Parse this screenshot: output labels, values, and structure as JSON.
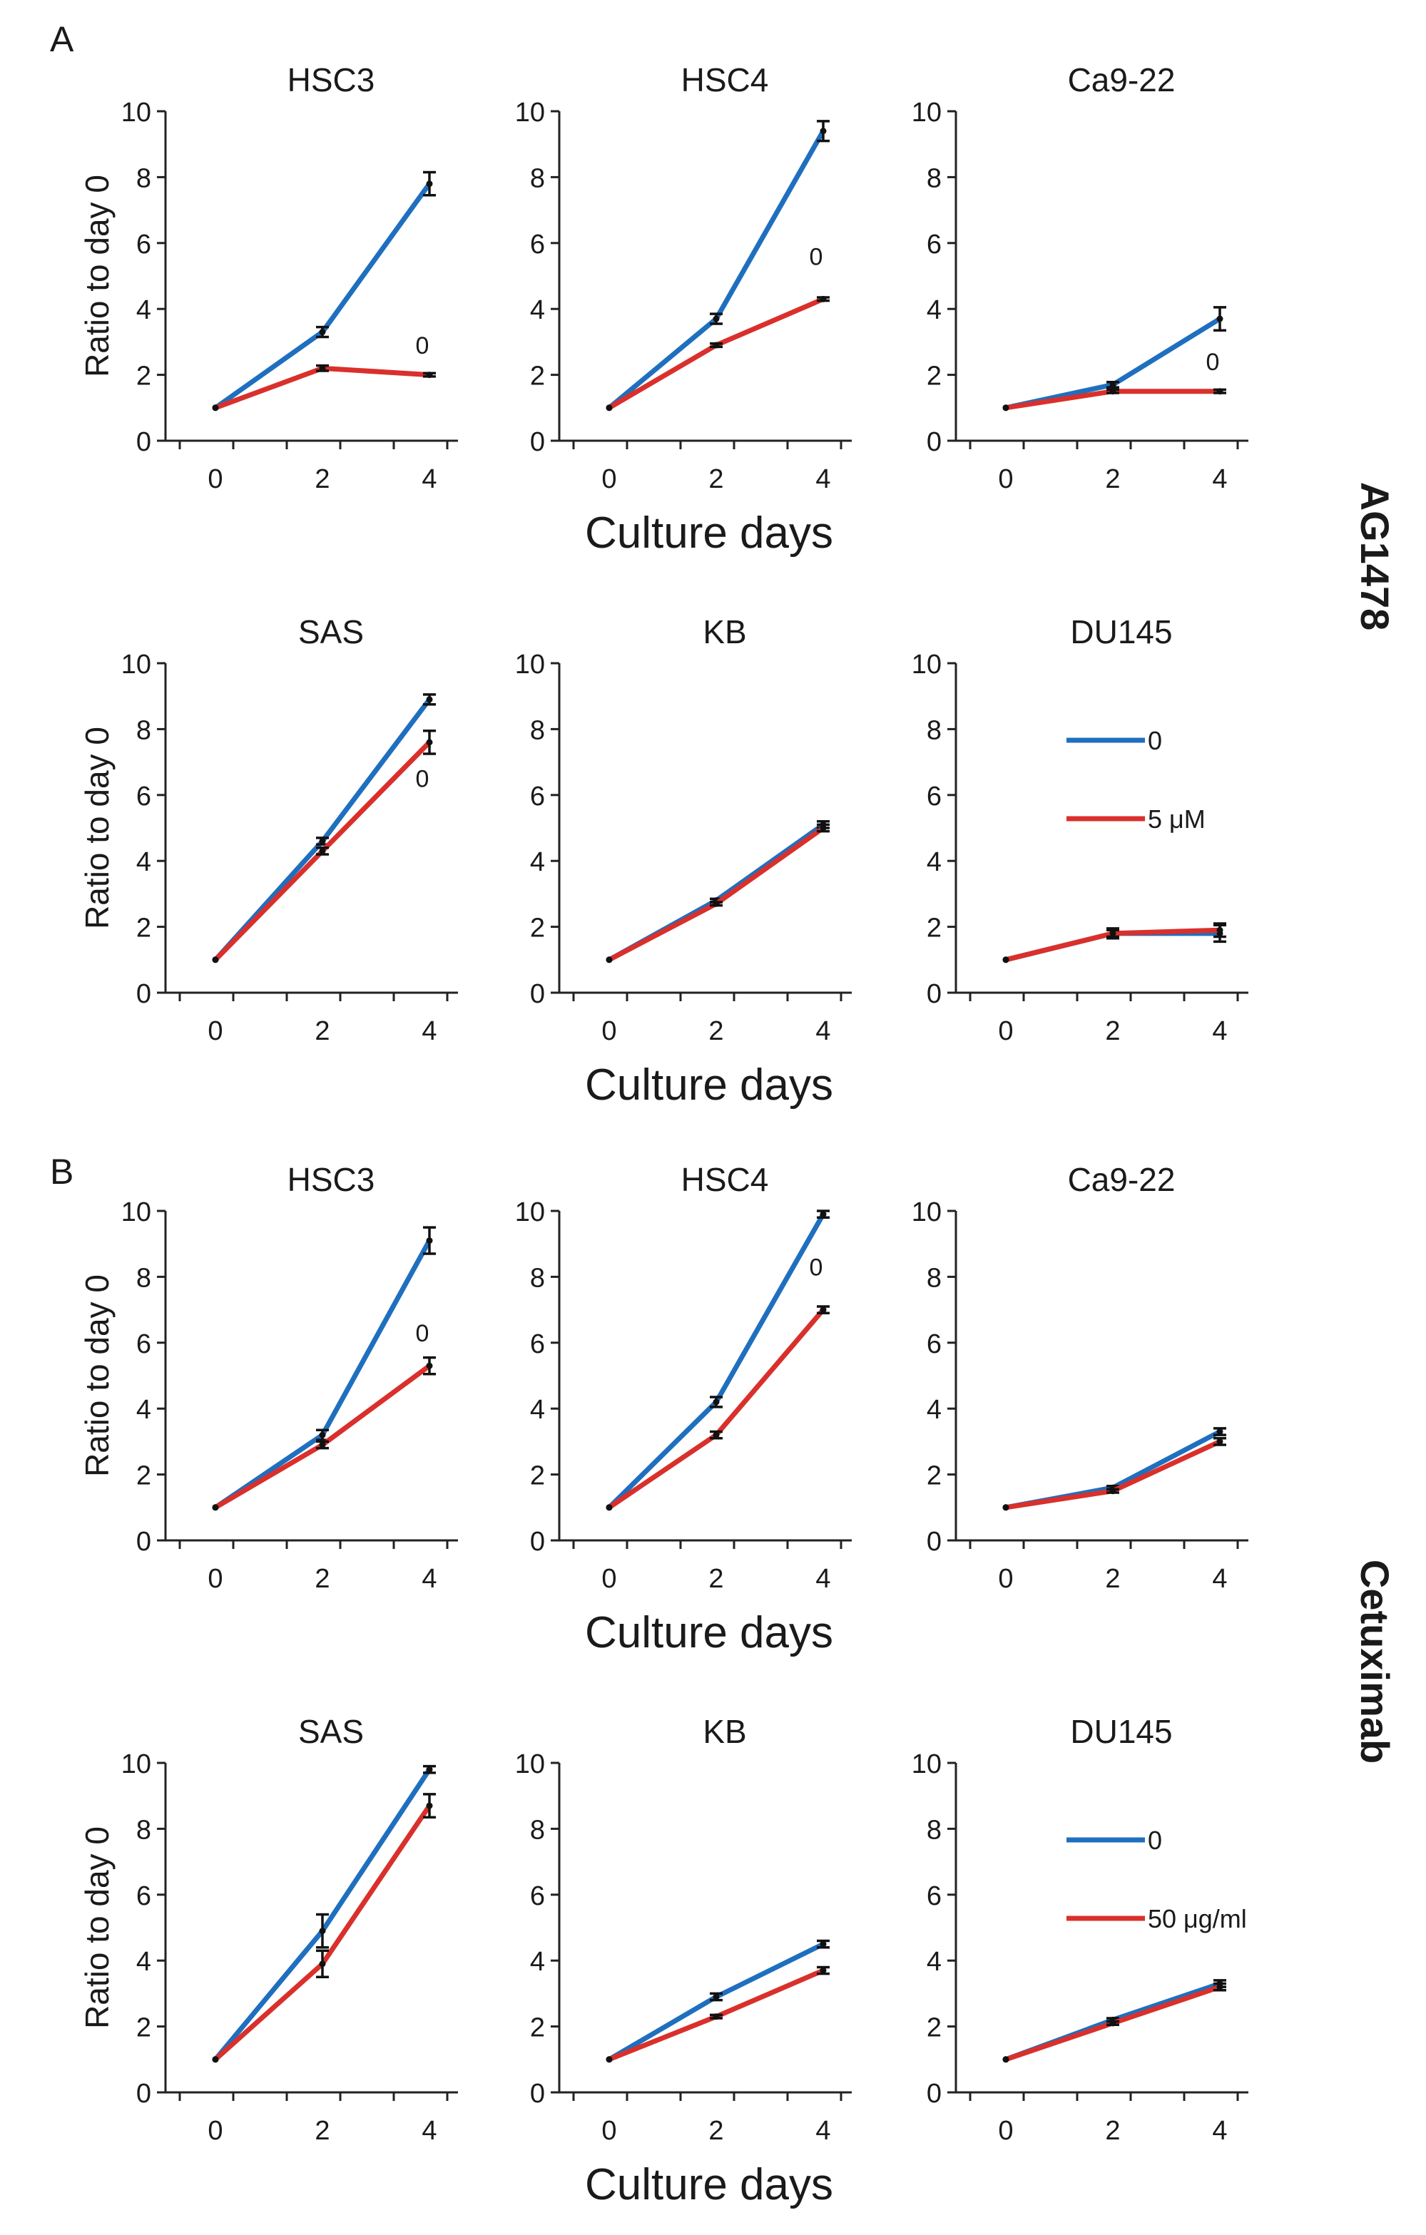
{
  "figure": {
    "panel_labels": [
      "A",
      "B"
    ],
    "treatment_labels": [
      "AG1478",
      "Cetuximab"
    ],
    "xlabel": "Culture days",
    "ylabel": "Ratio to day 0",
    "colors": {
      "control": "#1f6fbf",
      "treated": "#d9302c"
    },
    "significance_mark": "0"
  },
  "chart_data": [
    {
      "type": "line",
      "group": "AG1478",
      "title": "HSC3",
      "x": [
        0,
        2,
        4
      ],
      "ylim": [
        0,
        10
      ],
      "yticks": [
        0,
        2,
        4,
        6,
        8,
        10
      ],
      "xlabel": "",
      "ylabel": "Ratio to day 0",
      "series": [
        {
          "name": "0",
          "values": [
            1,
            3.3,
            7.8
          ],
          "err": [
            0,
            0.15,
            0.35
          ]
        },
        {
          "name": "5 μM",
          "values": [
            1,
            2.2,
            2.0
          ],
          "err": [
            0,
            0.08,
            0.05
          ]
        }
      ],
      "sig": 2.9
    },
    {
      "type": "line",
      "group": "AG1478",
      "title": "HSC4",
      "x": [
        0,
        2,
        4
      ],
      "ylim": [
        0,
        10
      ],
      "yticks": [
        0,
        2,
        4,
        6,
        8,
        10
      ],
      "xlabel": "Culture days",
      "ylabel": "",
      "series": [
        {
          "name": "0",
          "values": [
            1,
            3.7,
            9.4
          ],
          "err": [
            0,
            0.15,
            0.3
          ]
        },
        {
          "name": "5 μM",
          "values": [
            1,
            2.9,
            4.3
          ],
          "err": [
            0,
            0.05,
            0.05
          ]
        }
      ],
      "sig": 5.6
    },
    {
      "type": "line",
      "group": "AG1478",
      "title": "Ca9-22",
      "x": [
        0,
        2,
        4
      ],
      "ylim": [
        0,
        10
      ],
      "yticks": [
        0,
        2,
        4,
        6,
        8,
        10
      ],
      "xlabel": "",
      "ylabel": "",
      "series": [
        {
          "name": "0",
          "values": [
            1,
            1.7,
            3.7
          ],
          "err": [
            0,
            0.08,
            0.35
          ]
        },
        {
          "name": "5 μM",
          "values": [
            1,
            1.5,
            1.5
          ],
          "err": [
            0,
            0.05,
            0.05
          ]
        }
      ],
      "sig": 2.4
    },
    {
      "type": "line",
      "group": "AG1478",
      "title": "SAS",
      "x": [
        0,
        2,
        4
      ],
      "ylim": [
        0,
        10
      ],
      "yticks": [
        0,
        2,
        4,
        6,
        8,
        10
      ],
      "xlabel": "",
      "ylabel": "Ratio to day 0",
      "series": [
        {
          "name": "0",
          "values": [
            1,
            4.6,
            8.9
          ],
          "err": [
            0,
            0.1,
            0.15
          ]
        },
        {
          "name": "5 μM",
          "values": [
            1,
            4.3,
            7.6
          ],
          "err": [
            0,
            0.1,
            0.35
          ]
        }
      ],
      "sig": 6.5
    },
    {
      "type": "line",
      "group": "AG1478",
      "title": "KB",
      "x": [
        0,
        2,
        4
      ],
      "ylim": [
        0,
        10
      ],
      "yticks": [
        0,
        2,
        4,
        6,
        8,
        10
      ],
      "xlabel": "Culture days",
      "ylabel": "",
      "series": [
        {
          "name": "0",
          "values": [
            1,
            2.8,
            5.1
          ],
          "err": [
            0,
            0.05,
            0.1
          ]
        },
        {
          "name": "5 μM",
          "values": [
            1,
            2.7,
            5.0
          ],
          "err": [
            0,
            0.05,
            0.1
          ]
        }
      ],
      "sig": null
    },
    {
      "type": "line",
      "group": "AG1478",
      "title": "DU145",
      "x": [
        0,
        2,
        4
      ],
      "ylim": [
        0,
        10
      ],
      "yticks": [
        0,
        2,
        4,
        6,
        8,
        10
      ],
      "xlabel": "",
      "ylabel": "",
      "series": [
        {
          "name": "0",
          "values": [
            1,
            1.8,
            1.8
          ],
          "err": [
            0,
            0.15,
            0.25
          ]
        },
        {
          "name": "5 μM",
          "values": [
            1,
            1.8,
            1.9
          ],
          "err": [
            0,
            0.1,
            0.2
          ]
        }
      ],
      "sig": null,
      "legend": {
        "entries": [
          "0",
          "5 μM"
        ]
      }
    },
    {
      "type": "line",
      "group": "Cetuximab",
      "title": "HSC3",
      "x": [
        0,
        2,
        4
      ],
      "ylim": [
        0,
        10
      ],
      "yticks": [
        0,
        2,
        4,
        6,
        8,
        10
      ],
      "xlabel": "",
      "ylabel": "Ratio to day 0",
      "series": [
        {
          "name": "0",
          "values": [
            1,
            3.2,
            9.1
          ],
          "err": [
            0,
            0.15,
            0.4
          ]
        },
        {
          "name": "50 μg/ml",
          "values": [
            1,
            2.9,
            5.3
          ],
          "err": [
            0,
            0.1,
            0.25
          ]
        }
      ],
      "sig": 6.3
    },
    {
      "type": "line",
      "group": "Cetuximab",
      "title": "HSC4",
      "x": [
        0,
        2,
        4
      ],
      "ylim": [
        0,
        10
      ],
      "yticks": [
        0,
        2,
        4,
        6,
        8,
        10
      ],
      "xlabel": "Culture days",
      "ylabel": "",
      "series": [
        {
          "name": "0",
          "values": [
            1,
            4.2,
            9.9
          ],
          "err": [
            0,
            0.15,
            0.1
          ]
        },
        {
          "name": "50 μg/ml",
          "values": [
            1,
            3.2,
            7.0
          ],
          "err": [
            0,
            0.1,
            0.1
          ]
        }
      ],
      "sig": 8.3
    },
    {
      "type": "line",
      "group": "Cetuximab",
      "title": "Ca9-22",
      "x": [
        0,
        2,
        4
      ],
      "ylim": [
        0,
        10
      ],
      "yticks": [
        0,
        2,
        4,
        6,
        8,
        10
      ],
      "xlabel": "",
      "ylabel": "",
      "series": [
        {
          "name": "0",
          "values": [
            1,
            1.6,
            3.3
          ],
          "err": [
            0,
            0.05,
            0.1
          ]
        },
        {
          "name": "50 μg/ml",
          "values": [
            1,
            1.5,
            3.0
          ],
          "err": [
            0,
            0.05,
            0.1
          ]
        }
      ],
      "sig": null
    },
    {
      "type": "line",
      "group": "Cetuximab",
      "title": "SAS",
      "x": [
        0,
        2,
        4
      ],
      "ylim": [
        0,
        10
      ],
      "yticks": [
        0,
        2,
        4,
        6,
        8,
        10
      ],
      "xlabel": "",
      "ylabel": "Ratio to day 0",
      "series": [
        {
          "name": "0",
          "values": [
            1,
            4.9,
            9.8
          ],
          "err": [
            0,
            0.5,
            0.1
          ]
        },
        {
          "name": "50 μg/ml",
          "values": [
            1,
            3.9,
            8.7
          ],
          "err": [
            0,
            0.4,
            0.35
          ]
        }
      ],
      "sig": null
    },
    {
      "type": "line",
      "group": "Cetuximab",
      "title": "KB",
      "x": [
        0,
        2,
        4
      ],
      "ylim": [
        0,
        10
      ],
      "yticks": [
        0,
        2,
        4,
        6,
        8,
        10
      ],
      "xlabel": "Culture days",
      "ylabel": "",
      "series": [
        {
          "name": "0",
          "values": [
            1,
            2.9,
            4.5
          ],
          "err": [
            0,
            0.1,
            0.1
          ]
        },
        {
          "name": "50 μg/ml",
          "values": [
            1,
            2.3,
            3.7
          ],
          "err": [
            0,
            0.05,
            0.1
          ]
        }
      ],
      "sig": null
    },
    {
      "type": "line",
      "group": "Cetuximab",
      "title": "DU145",
      "x": [
        0,
        2,
        4
      ],
      "ylim": [
        0,
        10
      ],
      "yticks": [
        0,
        2,
        4,
        6,
        8,
        10
      ],
      "xlabel": "",
      "ylabel": "",
      "series": [
        {
          "name": "0",
          "values": [
            1,
            2.2,
            3.3
          ],
          "err": [
            0,
            0.05,
            0.1
          ]
        },
        {
          "name": "50 μg/ml",
          "values": [
            1,
            2.1,
            3.2
          ],
          "err": [
            0,
            0.05,
            0.1
          ]
        }
      ],
      "sig": null,
      "legend": {
        "entries": [
          "0",
          "50 μg/ml"
        ]
      }
    }
  ]
}
